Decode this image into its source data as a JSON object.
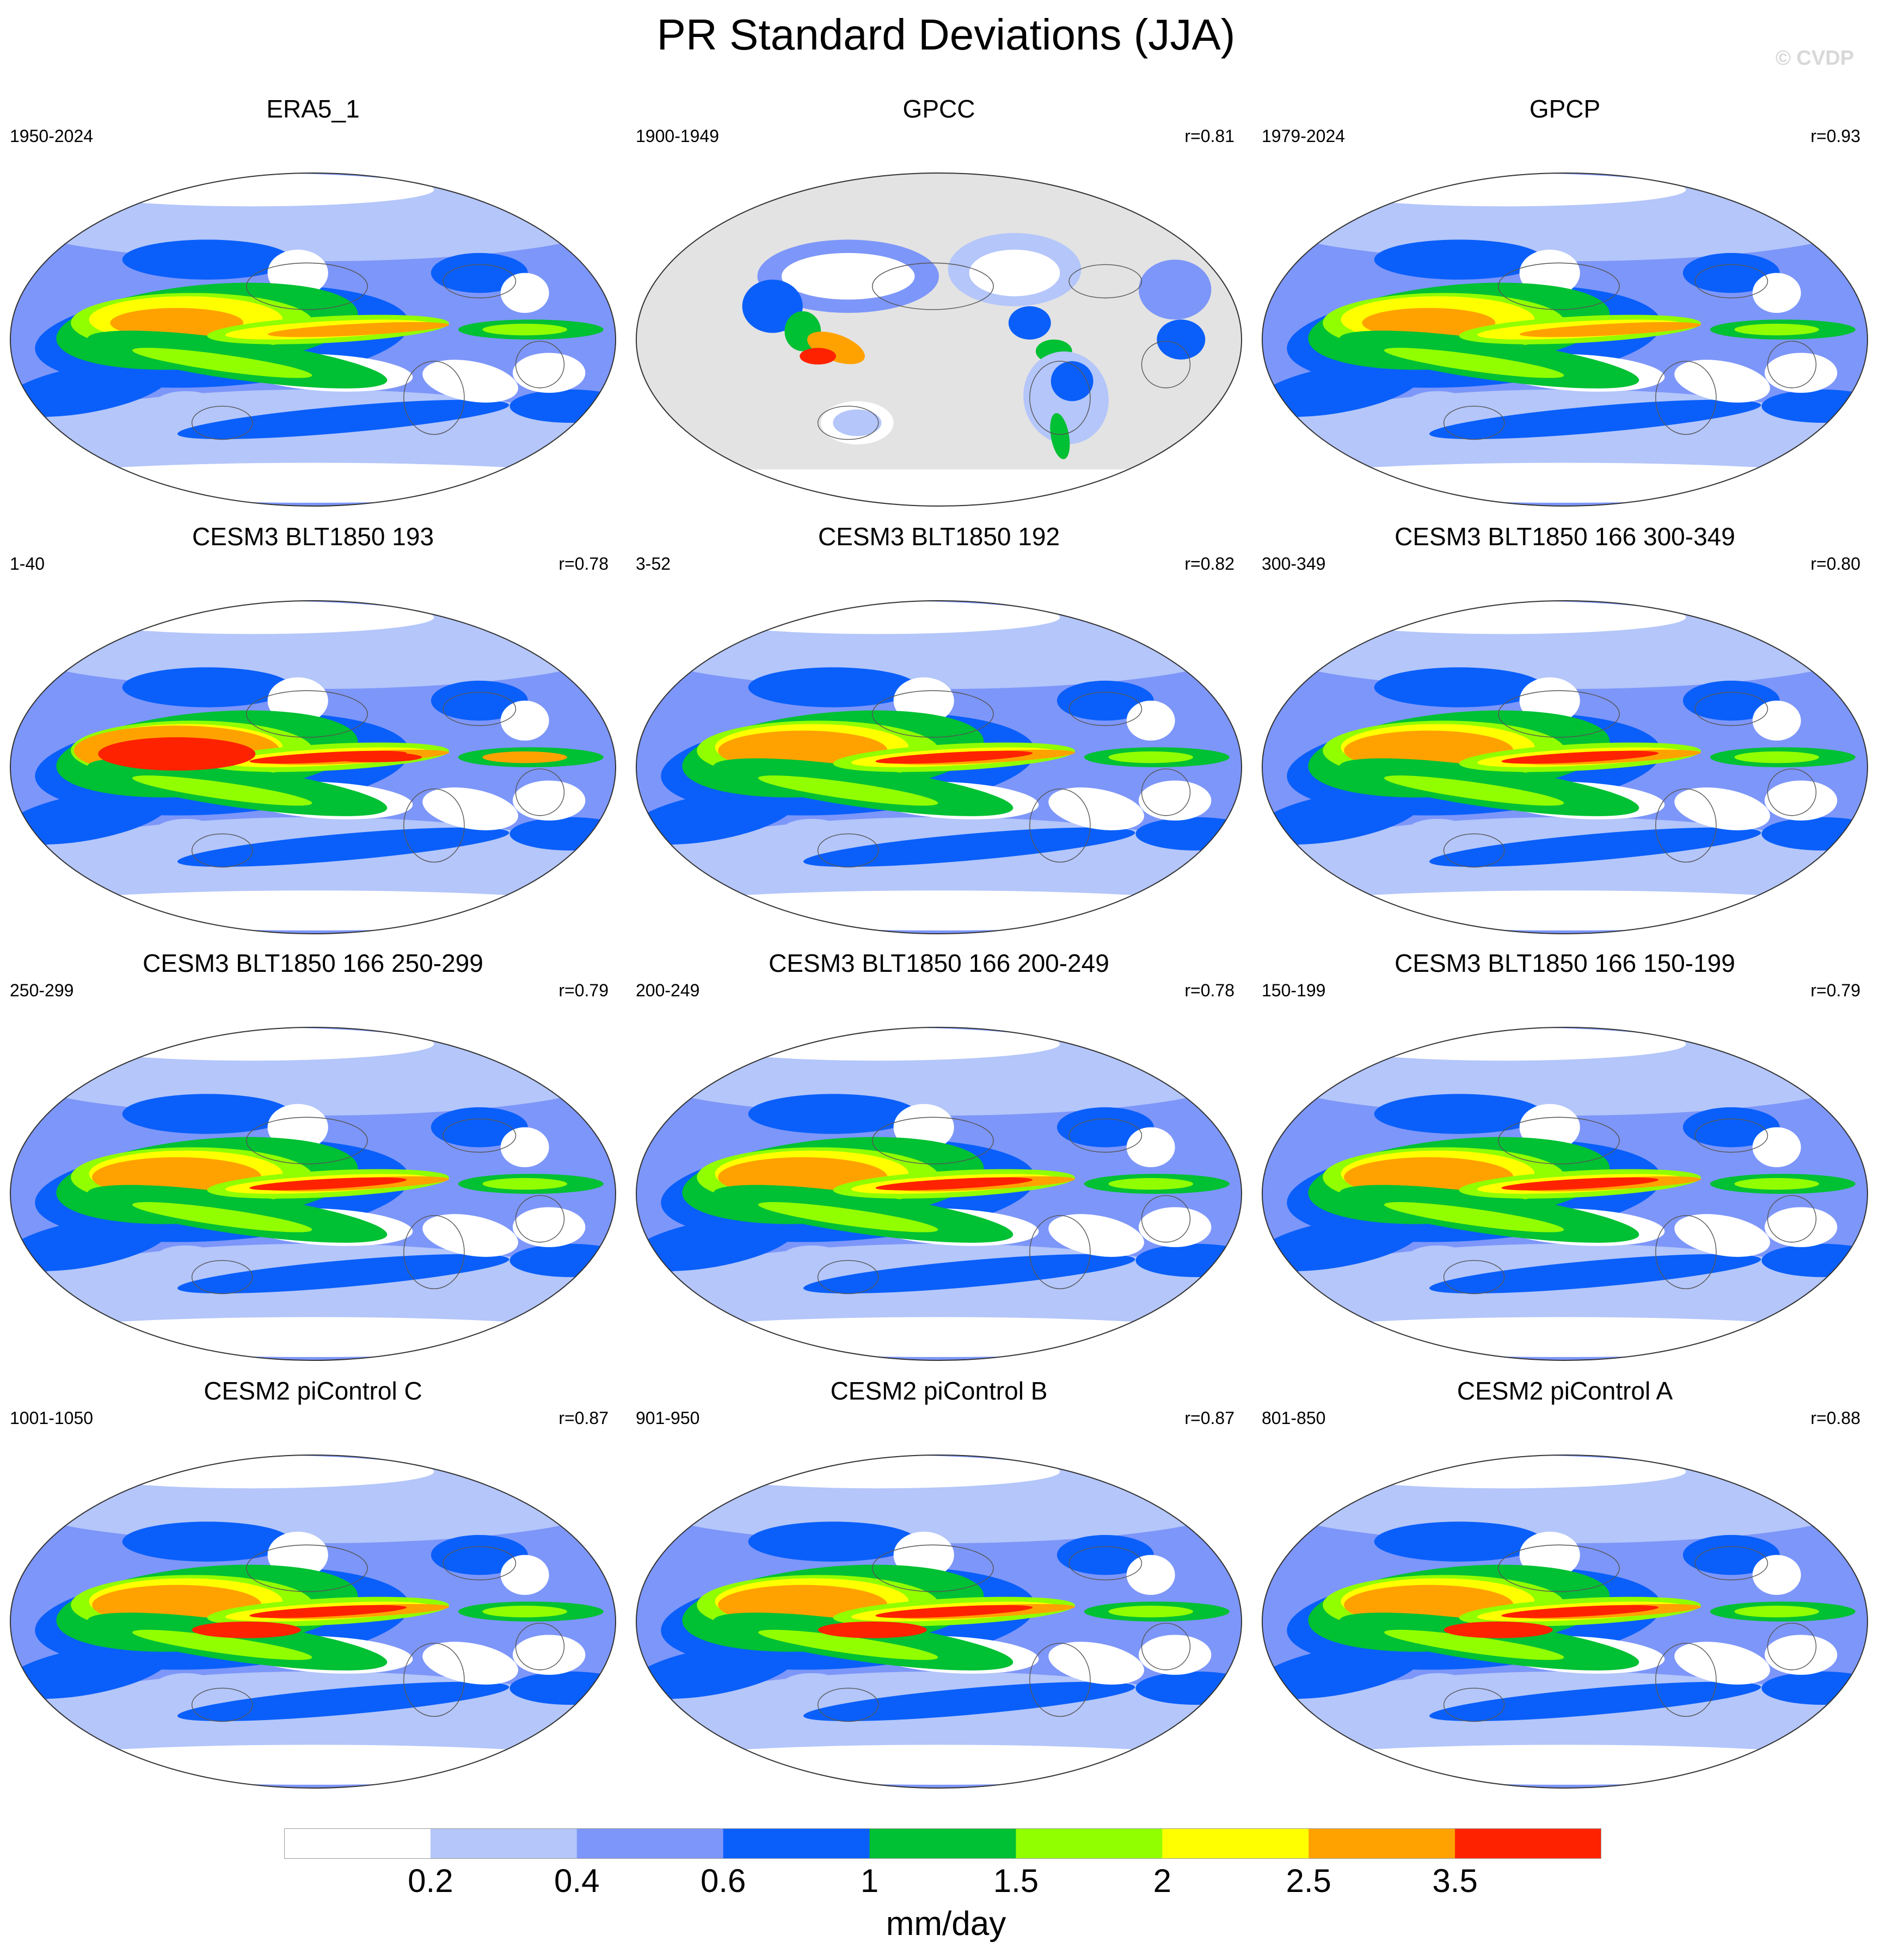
{
  "title": "PR Standard Deviations (JJA)",
  "watermark": "© CVDP",
  "colorbar": {
    "colors": [
      "#ffffff",
      "#b4c6fa",
      "#7d96f9",
      "#0a5ffa",
      "#00c033",
      "#91ff00",
      "#ffff00",
      "#ffa200",
      "#ff2200"
    ],
    "labels": [
      "0.2",
      "0.4",
      "0.6",
      "1",
      "1.5",
      "2",
      "2.5",
      "3.5"
    ],
    "units": "mm/day"
  },
  "panels": [
    {
      "title": "ERA5_1",
      "period": "1950-2024",
      "corr": "",
      "style": "obs"
    },
    {
      "title": "GPCC",
      "period": "1900-1949",
      "corr": "r=0.81",
      "style": "land"
    },
    {
      "title": "GPCP",
      "period": "1979-2024",
      "corr": "r=0.93",
      "style": "obs"
    },
    {
      "title": "CESM3 BLT1850 193",
      "period": "1-40",
      "corr": "r=0.78",
      "style": "strong"
    },
    {
      "title": "CESM3 BLT1850 192",
      "period": "3-52",
      "corr": "r=0.82",
      "style": "model"
    },
    {
      "title": "CESM3 BLT1850 166 300-349",
      "period": "300-349",
      "corr": "r=0.80",
      "style": "model"
    },
    {
      "title": "CESM3 BLT1850 166 250-299",
      "period": "250-299",
      "corr": "r=0.79",
      "style": "model"
    },
    {
      "title": "CESM3 BLT1850 166 200-249",
      "period": "200-249",
      "corr": "r=0.78",
      "style": "model"
    },
    {
      "title": "CESM3 BLT1850 166 150-199",
      "period": "150-199",
      "corr": "r=0.79",
      "style": "model"
    },
    {
      "title": "CESM2 piControl C",
      "period": "1001-1050",
      "corr": "r=0.87",
      "style": "cesm2"
    },
    {
      "title": "CESM2 piControl B",
      "period": "901-950",
      "corr": "r=0.87",
      "style": "cesm2"
    },
    {
      "title": "CESM2 piControl A",
      "period": "801-850",
      "corr": "r=0.88",
      "style": "cesm2"
    }
  ]
}
